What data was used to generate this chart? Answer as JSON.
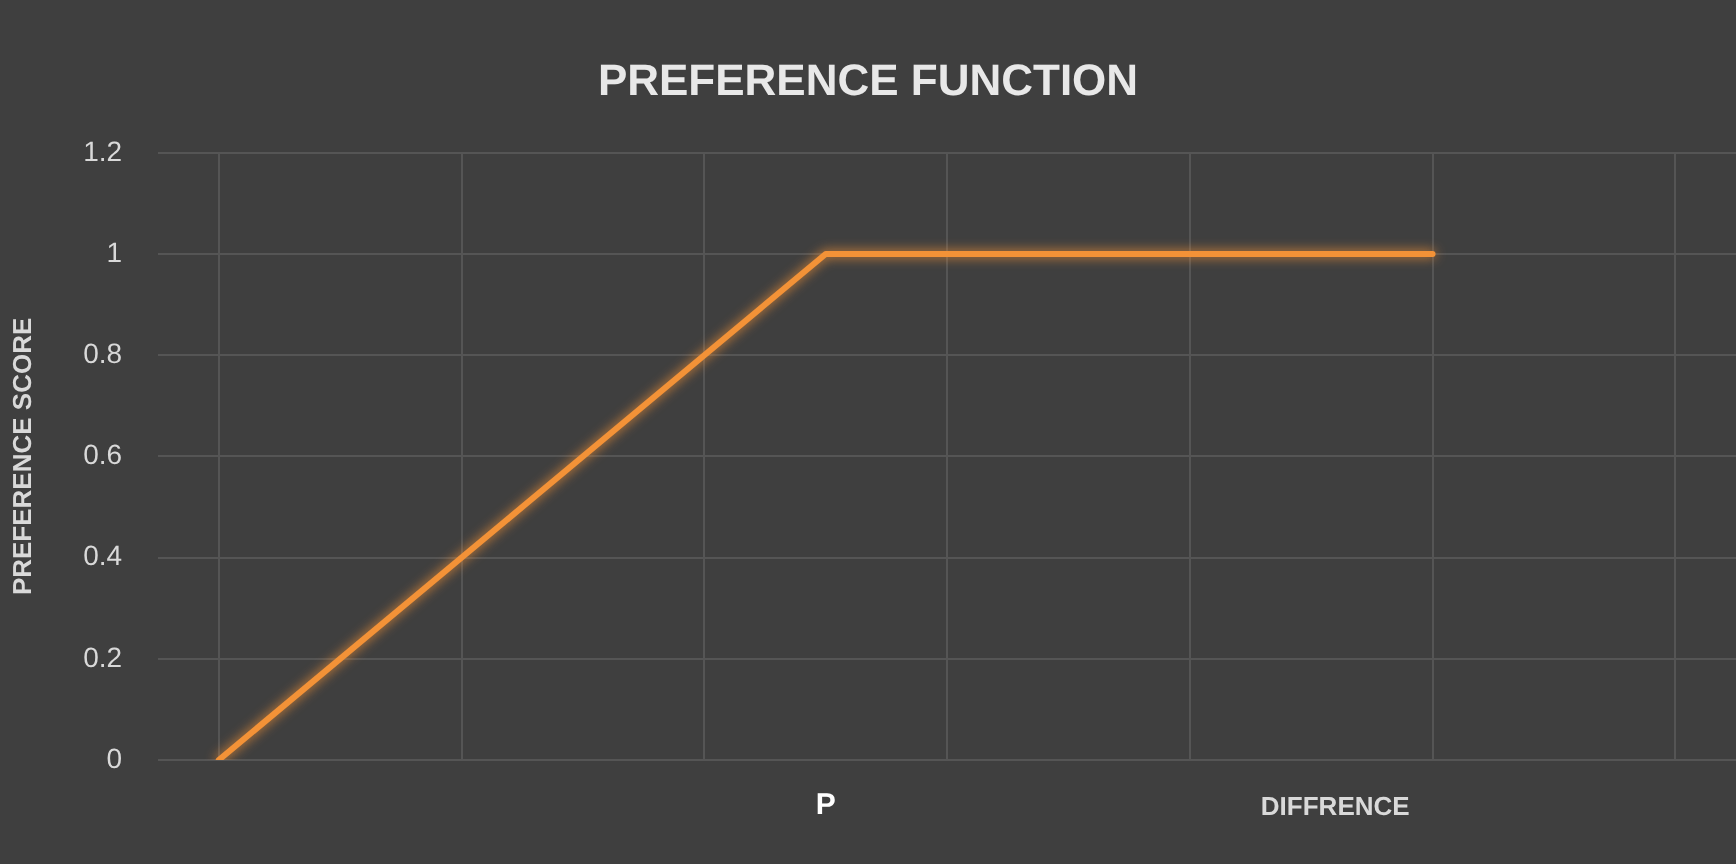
{
  "chart_data": {
    "type": "line",
    "title": "PREFERENCE FUNCTION",
    "xlabel": "DIFFRENCE",
    "ylabel": "PREFERENCE SCORE",
    "categories": [
      null,
      null,
      null,
      null,
      null,
      "P",
      null,
      null,
      null,
      null,
      null,
      null,
      null
    ],
    "values": [
      0,
      null,
      null,
      null,
      null,
      1,
      null,
      null,
      null,
      null,
      1,
      null,
      null
    ],
    "color": "#f39237",
    "ylim": [
      0,
      1.2
    ],
    "yticks": [
      0,
      0.2,
      0.4,
      0.6,
      0.8,
      1,
      1.2
    ],
    "grid": true,
    "legend": false,
    "marker": "none",
    "line_style": "solid"
  }
}
